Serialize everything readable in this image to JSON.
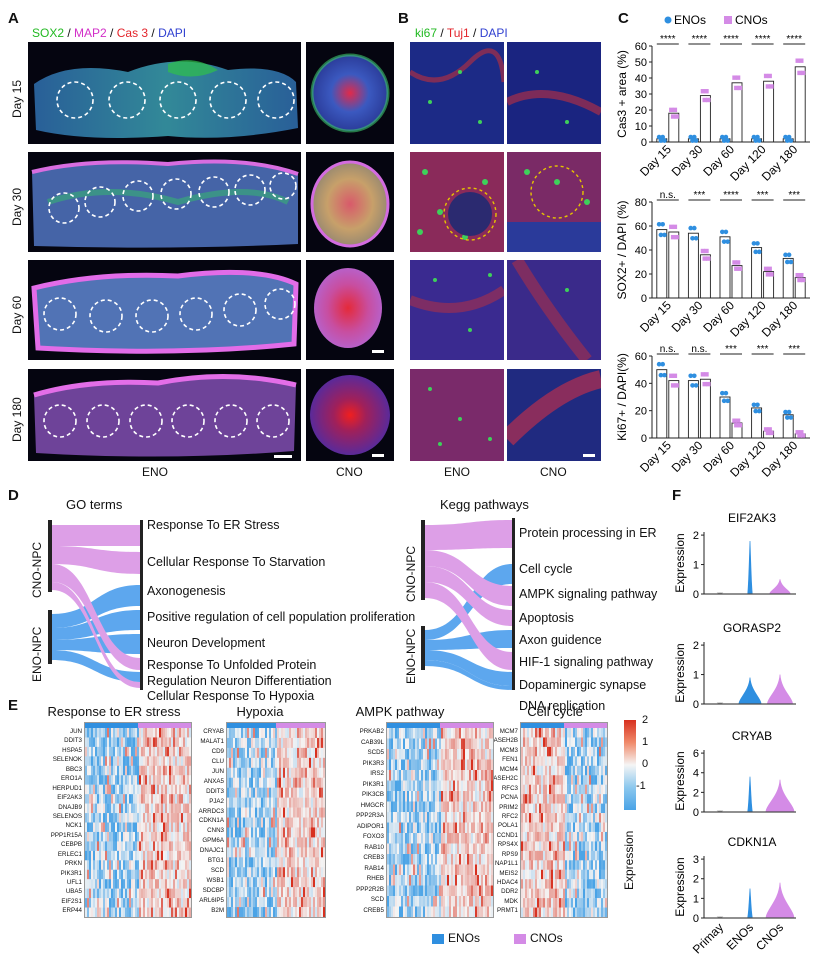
{
  "panels": {
    "a": "A",
    "b": "B",
    "c": "C",
    "d": "D",
    "e": "E",
    "f": "F"
  },
  "panel_a": {
    "legend": [
      {
        "text": "SOX2",
        "color": "#22b922"
      },
      {
        "text": " / ",
        "color": "#111111"
      },
      {
        "text": "MAP2",
        "color": "#d22fc8"
      },
      {
        "text": " / ",
        "color": "#111111"
      },
      {
        "text": "Cas 3",
        "color": "#e3242b"
      },
      {
        "text": " / ",
        "color": "#111111"
      },
      {
        "text": "DAPI",
        "color": "#2f3fd0"
      }
    ],
    "days": [
      "Day 15",
      "Day 30",
      "Day 60",
      "Day 180"
    ],
    "col_eno": "ENO",
    "col_cno": "CNO"
  },
  "panel_b": {
    "legend": [
      {
        "text": "ki67",
        "color": "#22b922"
      },
      {
        "text": " / ",
        "color": "#111111"
      },
      {
        "text": "Tuj1",
        "color": "#e3242b"
      },
      {
        "text": " / ",
        "color": "#111111"
      },
      {
        "text": "DAPI",
        "color": "#2f3fd0"
      }
    ],
    "col_eno": "ENO",
    "col_cno": "CNO"
  },
  "chart_data": [
    {
      "type": "bar",
      "title": "",
      "ylabel": "Cas3 + area (%)",
      "ylim": [
        0,
        60
      ],
      "yticks": [
        0,
        10,
        20,
        30,
        40,
        50,
        60
      ],
      "categories": [
        "Day 15",
        "Day 30",
        "Day 60",
        "Day 120",
        "Day 180"
      ],
      "series": [
        {
          "name": "ENOs",
          "values": [
            2,
            2,
            2,
            2,
            2
          ]
        },
        {
          "name": "CNOs",
          "values": [
            18,
            29,
            37,
            38,
            47
          ]
        }
      ],
      "significance": [
        "****",
        "****",
        "****",
        "****",
        "****"
      ],
      "legend": [
        "ENOs",
        "CNOs"
      ]
    },
    {
      "type": "bar",
      "ylabel": "SOX2+ / DAPI (%)",
      "ylim": [
        0,
        80
      ],
      "yticks": [
        0,
        20,
        40,
        60,
        80
      ],
      "categories": [
        "Day 15",
        "Day 30",
        "Day 60",
        "Day 120",
        "Day 180"
      ],
      "series": [
        {
          "name": "ENOs",
          "values": [
            57,
            54,
            51,
            42,
            33
          ]
        },
        {
          "name": "CNOs",
          "values": [
            55,
            36,
            27,
            22,
            17
          ]
        }
      ],
      "significance": [
        "n.s.",
        "***",
        "****",
        "***",
        "***"
      ]
    },
    {
      "type": "bar",
      "ylabel": "Ki67+ / DAPI(%)",
      "ylim": [
        0,
        60
      ],
      "yticks": [
        0,
        20,
        40,
        60
      ],
      "categories": [
        "Day 15",
        "Day 30",
        "Day 60",
        "Day 120",
        "Day 180"
      ],
      "series": [
        {
          "name": "ENOs",
          "values": [
            50,
            42,
            30,
            22,
            17
          ]
        },
        {
          "name": "CNOs",
          "values": [
            42,
            43,
            11,
            5,
            3
          ]
        }
      ],
      "significance": [
        "n.s.",
        "n.s.",
        "***",
        "***",
        "***"
      ]
    }
  ],
  "panel_d": {
    "go_title": "GO terms",
    "kegg_title": "Kegg pathways",
    "group_cno": "CNO-NPC",
    "group_eno": "ENO-NPC",
    "go_terms": [
      "Response To ER Stress",
      "Cellular Response To Starvation",
      "Axonogenesis",
      "Positive regulation of cell population proliferation",
      "Neuron Development",
      "Response To Unfolded Protein",
      "Regulation Neuron Differentiation",
      "Cellular Response To Hypoxia"
    ],
    "kegg_terms": [
      "Protein processing in ER",
      "Cell cycle",
      "AMPK signaling pathway",
      "Apoptosis",
      "Axon guidence",
      "HIF-1 signaling pathway",
      "Dopaminergic synapse",
      "DNA replication"
    ]
  },
  "panel_e": {
    "heatmaps": [
      {
        "title": "Response to ER stress",
        "genes": [
          "JUN",
          "DDIT3",
          "HSPA5",
          "SELENOK",
          "BBC3",
          "ERO1A",
          "HERPUD1",
          "EIF2AK3",
          "DNAJB9",
          "SELENOS",
          "NCK1",
          "PPP1R15A",
          "CEBPB",
          "ERLEC1",
          "PRKN",
          "PIK3R1",
          "UFL1",
          "UBA5",
          "EIF2S1",
          "ERP44"
        ]
      },
      {
        "title": "Hypoxia",
        "genes": [
          "CRYAB",
          "MALAT1",
          "CD9",
          "CLU",
          "JUN",
          "ANXA5",
          "DDIT3",
          "PJA2",
          "ARRDC3",
          "CDKN1A",
          "CNN3",
          "GPM6A",
          "DNAJC1",
          "BTG1",
          "SCD",
          "WSB1",
          "SDCBP",
          "ARL6IP5",
          "B2M"
        ]
      },
      {
        "title": "AMPK pathway",
        "genes": [
          "PRKAB2",
          "CAB39L",
          "SCD5",
          "PIK3R3",
          "IRS2",
          "PIK3R1",
          "PIK3CB",
          "HMGCR",
          "PPP2R3A",
          "ADIPOR1",
          "FOXO3",
          "RAB10",
          "CREB3",
          "RAB14",
          "RHEB",
          "PPP2R2B",
          "SCD",
          "CREB5"
        ]
      },
      {
        "title": "Cell cycle",
        "genes": [
          "MCM7",
          "RNASEH2B",
          "MCM3",
          "FEN1",
          "MCM4",
          "RNASEH2C",
          "RFC3",
          "PCNA",
          "PRIM2",
          "RFC2",
          "POLA1",
          "CCND1",
          "RPS4X",
          "RPS9",
          "NAP1L1",
          "MEIS2",
          "HDAC4",
          "DDR2",
          "MDK",
          "PRMT1"
        ]
      }
    ],
    "colorbar_ticks": [
      "2",
      "1",
      "0",
      "-1"
    ],
    "colorbar_label": "Expression",
    "legend_eno": "ENOs",
    "legend_cno": "CNOs",
    "color_eno": "#2f8fe0",
    "color_cno": "#d48be6"
  },
  "panel_f": {
    "genes": [
      {
        "name": "EIF2AK3",
        "ymax": 2,
        "yticks": [
          "0",
          "1",
          "2"
        ]
      },
      {
        "name": "GORASP2",
        "ymax": 2,
        "yticks": [
          "0",
          "1",
          "2"
        ]
      },
      {
        "name": "CRYAB",
        "ymax": 6,
        "yticks": [
          "0",
          "2",
          "4",
          "6"
        ]
      },
      {
        "name": "CDKN1A",
        "ymax": 3,
        "yticks": [
          "0",
          "1",
          "2",
          "3"
        ]
      }
    ],
    "ylabel": "Expression",
    "groups": [
      "Primay",
      "ENOs",
      "CNOs"
    ]
  }
}
